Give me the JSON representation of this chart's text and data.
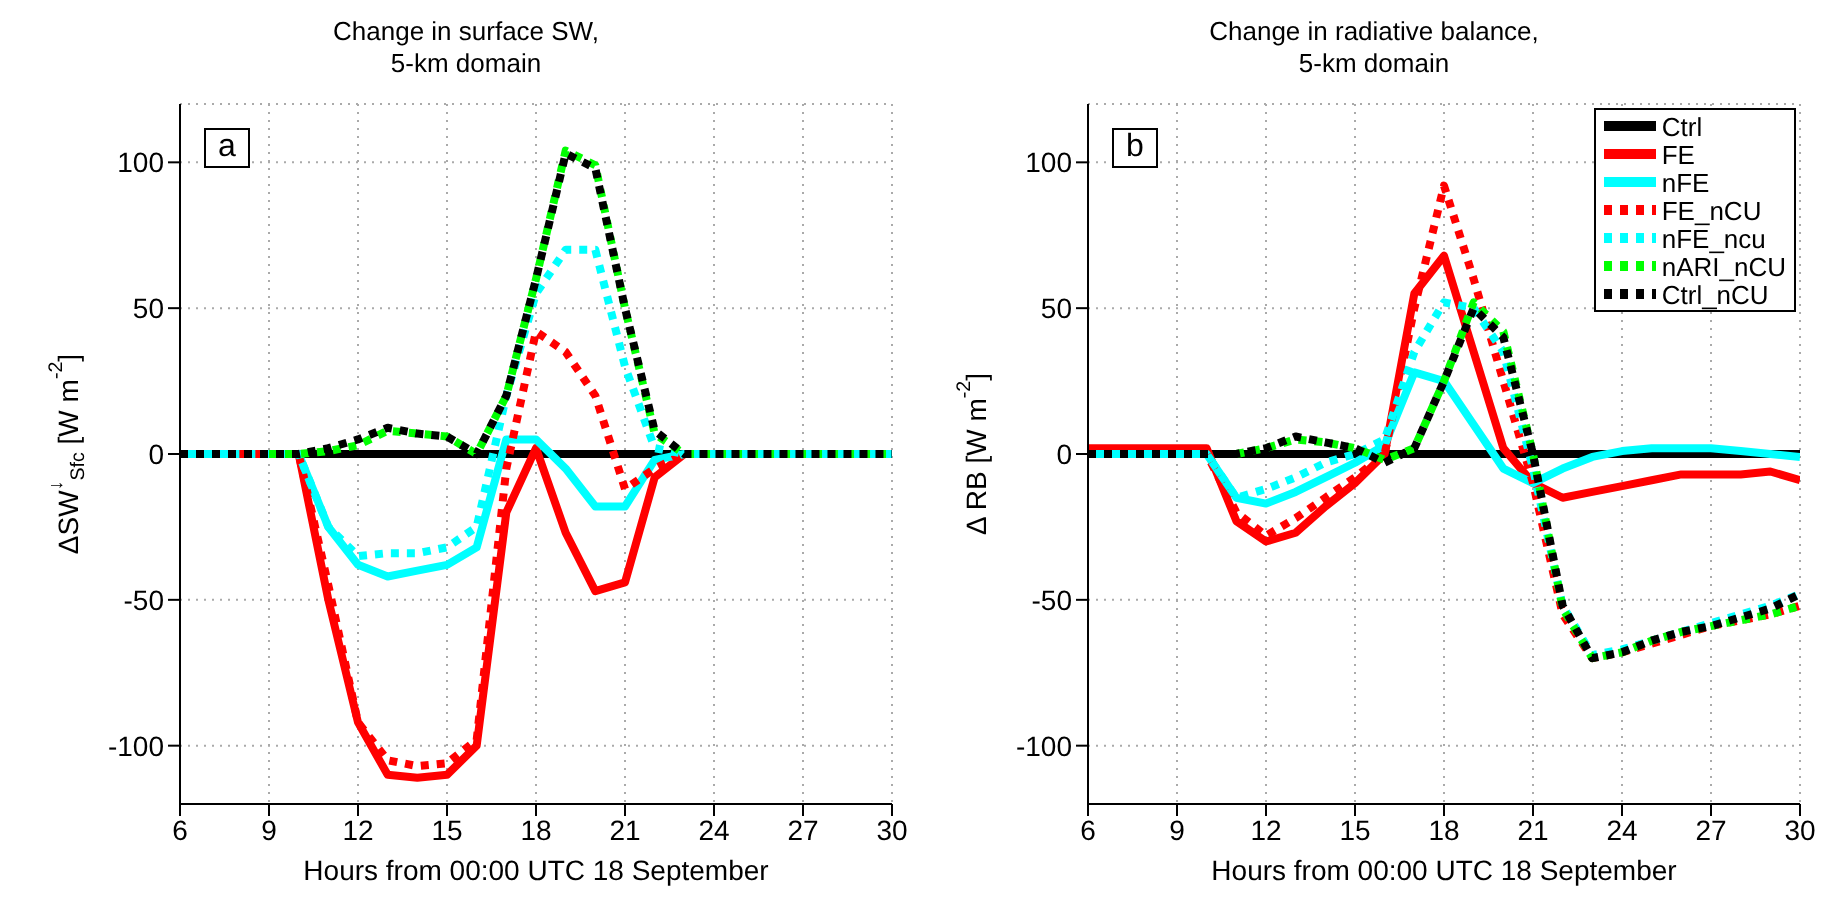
{
  "chart_data": [
    {
      "type": "line",
      "title": "Change in surface SW,\n5-km domain",
      "xlabel": "Hours from 00:00 UTC 18 September",
      "ylabel": "ΔSW$^{↓}$$_{Sfc}$ [W m$^{-2}$]",
      "annotations": [
        "a"
      ],
      "x": [
        6,
        7,
        8,
        9,
        10,
        11,
        12,
        13,
        14,
        15,
        16,
        17,
        18,
        19,
        20,
        21,
        22,
        23,
        24,
        25,
        26,
        27,
        28,
        29,
        30
      ],
      "xlim": [
        6,
        30
      ],
      "xticks": [
        6,
        9,
        12,
        15,
        18,
        21,
        24,
        27,
        30
      ],
      "ylim": [
        -120,
        120
      ],
      "yticks": [
        -100,
        -50,
        0,
        50,
        100
      ],
      "grid": true,
      "legend": false,
      "marker": "none",
      "series": [
        {
          "color": "#000000",
          "line_style": "solid",
          "values": [
            0,
            0,
            0,
            0,
            0,
            0,
            0,
            0,
            0,
            0,
            0,
            0,
            0,
            0,
            0,
            0,
            0,
            0,
            0,
            0,
            0,
            0,
            0,
            0,
            0
          ]
        },
        {
          "color": "#ff0000",
          "line_style": "solid",
          "values": [
            null,
            null,
            null,
            0,
            0,
            -50,
            -92,
            -110,
            -111,
            -110,
            -100,
            -20,
            2,
            -27,
            -47,
            -44,
            -8,
            0,
            null,
            null,
            null,
            null,
            null,
            null,
            null
          ]
        },
        {
          "color": "#00ffff",
          "line_style": "solid",
          "values": [
            0,
            0,
            0,
            0,
            0,
            -25,
            -38,
            -42,
            -40,
            -38,
            -32,
            5,
            5,
            -5,
            -18,
            -18,
            -2,
            0,
            0,
            0,
            0,
            0,
            0,
            0,
            0
          ]
        },
        {
          "color": "#ff0000",
          "line_style": "dotted",
          "values": [
            null,
            null,
            0,
            0,
            0,
            -45,
            -92,
            -105,
            -107,
            -106,
            -98,
            -5,
            42,
            35,
            20,
            -12,
            -5,
            0,
            null,
            null,
            null,
            null,
            null,
            null,
            null
          ]
        },
        {
          "color": "#00ffff",
          "line_style": "dotted",
          "values": [
            0,
            0,
            0,
            0,
            0,
            -25,
            -35,
            -34,
            -34,
            -32,
            -25,
            20,
            55,
            70,
            70,
            30,
            2,
            0,
            0,
            0,
            0,
            0,
            0,
            0,
            0
          ]
        },
        {
          "color": "#00ff00",
          "line_style": "dotted",
          "values": [
            null,
            null,
            null,
            0,
            0,
            1,
            3,
            8,
            7,
            6,
            0,
            20,
            60,
            104,
            99,
            50,
            7,
            0,
            0,
            0,
            0,
            0,
            0,
            0,
            0
          ]
        },
        {
          "color": "#000000",
          "line_style": "dotted",
          "values": [
            0,
            0,
            0,
            0,
            0,
            2,
            5,
            9,
            7,
            6,
            0,
            20,
            60,
            103,
            98,
            50,
            8,
            0,
            0,
            0,
            0,
            0,
            0,
            0,
            0
          ]
        }
      ]
    },
    {
      "type": "line",
      "title": "Change in radiative balance,\n5-km domain",
      "xlabel": "Hours from 00:00 UTC 18 September",
      "ylabel": "Δ RB [W m$^{-2}$]",
      "annotations": [
        "b"
      ],
      "x": [
        6,
        7,
        8,
        9,
        10,
        11,
        12,
        13,
        14,
        15,
        16,
        17,
        18,
        19,
        20,
        21,
        22,
        23,
        24,
        25,
        26,
        27,
        28,
        29,
        30
      ],
      "xlim": [
        6,
        30
      ],
      "xticks": [
        6,
        9,
        12,
        15,
        18,
        21,
        24,
        27,
        30
      ],
      "ylim": [
        -120,
        120
      ],
      "yticks": [
        -100,
        -50,
        0,
        50,
        100
      ],
      "grid": true,
      "legend": "top right",
      "marker": "none",
      "series": [
        {
          "name": "Ctrl",
          "color": "#000000",
          "line_style": "solid",
          "values": [
            0,
            0,
            0,
            0,
            0,
            0,
            0,
            0,
            0,
            0,
            0,
            0,
            0,
            0,
            0,
            0,
            0,
            0,
            0,
            0,
            0,
            0,
            0,
            0,
            0
          ]
        },
        {
          "name": "FE",
          "color": "#ff0000",
          "line_style": "solid",
          "values": [
            2,
            2,
            2,
            2,
            2,
            -23,
            -30,
            -27,
            -18,
            -10,
            0,
            55,
            68,
            35,
            2,
            -10,
            -15,
            -13,
            -11,
            -9,
            -7,
            -7,
            -7,
            -6,
            -9
          ]
        },
        {
          "name": "nFE",
          "color": "#00ffff",
          "line_style": "solid",
          "values": [
            0,
            0,
            0,
            0,
            0,
            -15,
            -17,
            -13,
            -8,
            -3,
            3,
            28,
            25,
            10,
            -5,
            -10,
            -5,
            -1,
            1,
            2,
            2,
            2,
            1,
            0,
            -1
          ]
        },
        {
          "name": "FE_nCU",
          "color": "#ff0000",
          "line_style": "dotted",
          "values": [
            0,
            0,
            0,
            0,
            0,
            -20,
            -28,
            -22,
            -15,
            -8,
            0,
            50,
            92,
            60,
            25,
            -10,
            -55,
            -70,
            -68,
            -65,
            -62,
            -59,
            -57,
            -55,
            -52
          ]
        },
        {
          "name": "nFE_ncu",
          "color": "#00ffff",
          "line_style": "dotted",
          "values": [
            0,
            0,
            0,
            0,
            0,
            -15,
            -12,
            -8,
            -3,
            0,
            5,
            35,
            52,
            50,
            35,
            -5,
            -52,
            -69,
            -67,
            -64,
            -61,
            -58,
            -55,
            -52,
            -48
          ]
        },
        {
          "name": "nARI_nCU",
          "color": "#00ff00",
          "line_style": "dotted",
          "values": [
            null,
            null,
            null,
            null,
            null,
            0,
            2,
            5,
            4,
            2,
            -2,
            2,
            25,
            52,
            42,
            0,
            -53,
            -70,
            -68,
            -64,
            -61,
            -59,
            -57,
            -55,
            -52
          ]
        },
        {
          "name": "Ctrl_nCU",
          "color": "#000000",
          "line_style": "dotted",
          "values": [
            0,
            0,
            0,
            0,
            0,
            0,
            2,
            6,
            4,
            2,
            -3,
            2,
            25,
            50,
            40,
            0,
            -52,
            -70,
            -68,
            -64,
            -61,
            -59,
            -56,
            -53,
            -48
          ]
        }
      ]
    }
  ]
}
